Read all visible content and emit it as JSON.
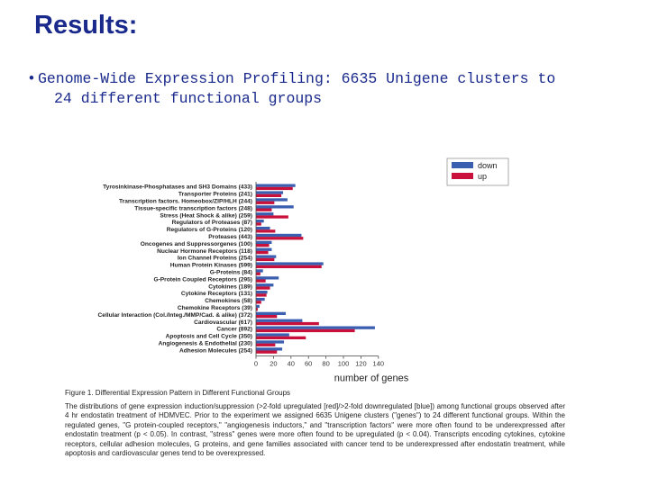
{
  "slide": {
    "title": "Results:",
    "bullet_symbol": "•",
    "bullet_line1": "Genome-Wide Expression Profiling: 6635 Unigene clusters to",
    "bullet_line2": "24 different functional groups"
  },
  "caption": {
    "title": "Figure 1.  Differential Expression Pattern in Different Functional Groups",
    "body": "The distributions of gene expression induction/suppression (>2-fold upregulated [red]/>2-fold downregulated [blue]) among functional groups observed after 4 hr endostatin treatment of HDMVEC. Prior to the experiment we assigned 6635 Unigene clusters (\"genes\") to 24 different functional groups. Within the regulated genes, \"G protein-coupled receptors,\" \"angiogenesis inductors,\" and \"transcription factors\" were more often found to be underexpressed after endostatin treatment (p < 0.05). In contrast, \"stress\" genes were more often found to be upregulated (p < 0.04). Transcripts encoding cytokines, cytokine receptors, cellular adhesion molecules, G proteins, and gene families associated with cancer tend to be underexpressed after endostatin treatment, while apoptosis and cardiovascular genes tend to be overexpressed."
  },
  "colors": {
    "down": "#3b5fb0",
    "up": "#c8103a"
  },
  "chart_data": {
    "type": "bar",
    "orientation": "horizontal",
    "xlabel": "number of genes",
    "xlim": [
      0,
      140
    ],
    "xticks": [
      "0",
      "20",
      "40",
      "60",
      "80",
      "100",
      "120",
      "140"
    ],
    "grid": false,
    "legend_position": "top-right",
    "categories": [
      "Tyrosinkinase-Phosphatases and SH3 Domains (433)",
      "Transporter Proteins (241)",
      "Transcription factors. Homeobox/ZIP/HLH (244)",
      "Tissue-specific transcription factors (248)",
      "Stress (Heat Shock & alike) (259)",
      "Regulators of Proteases (87)",
      "Regulators of G-Proteins (120)",
      "Proteases (443)",
      "Oncogenes and Suppressorgenes (100)",
      "Nuclear Hormone Receptors (118)",
      "Ion Channel Proteins (254)",
      "Human Protein Kinases (599)",
      "G-Proteins (84)",
      "G-Protein Coupled Receptors (295)",
      "Cytokines (189)",
      "Cytokine Receptors (131)",
      "Chemokines (58)",
      "Chemokine Receptors (39)",
      "Cellular Interaction (Col./Integ./MMP/Cad. & alike) (372)",
      "Cardiovascular (617)",
      "Cancer (892)",
      "Apoptosis and Cell Cycle (350)",
      "Angiogenesis & Endothelial (230)",
      "Adhesion Molecules (254)"
    ],
    "series": [
      {
        "name": "down",
        "color": "#3b5fb0",
        "values": [
          45,
          31,
          36,
          43,
          20,
          9,
          16,
          52,
          18,
          18,
          23,
          77,
          8,
          26,
          20,
          13,
          10,
          4,
          34,
          53,
          136,
          38,
          32,
          30
        ]
      },
      {
        "name": "up",
        "color": "#c8103a",
        "values": [
          42,
          29,
          21,
          18,
          37,
          6,
          22,
          54,
          15,
          14,
          21,
          75,
          5,
          11,
          16,
          12,
          6,
          2,
          24,
          72,
          113,
          57,
          22,
          24
        ]
      }
    ]
  }
}
